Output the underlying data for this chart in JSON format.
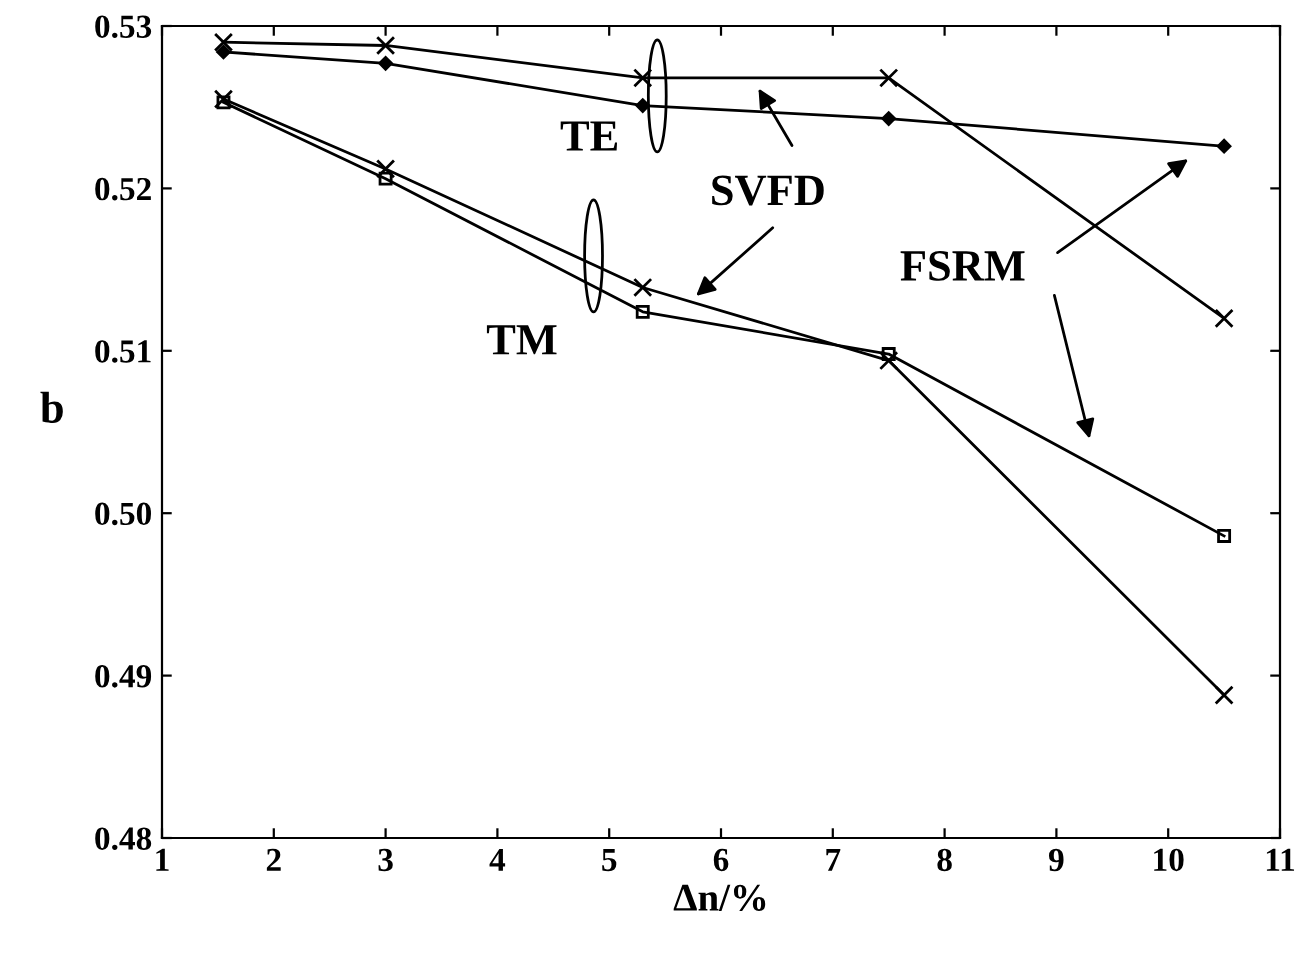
{
  "chart_data": {
    "type": "line",
    "xlabel": "Δn/%",
    "ylabel": "b",
    "xlim": [
      1,
      11
    ],
    "xticks": [
      1,
      2,
      3,
      4,
      5,
      6,
      7,
      8,
      9,
      10,
      11
    ],
    "ylim": [
      0.48,
      0.53
    ],
    "yticks": [
      0.48,
      0.49,
      {
        "value": 0.5,
        "label": "0.50"
      },
      0.51,
      0.52,
      0.53
    ],
    "grid": false,
    "legend": false,
    "line_style": "solid",
    "x": [
      1.55,
      3.0,
      5.3,
      7.5,
      10.5
    ],
    "series": [
      {
        "color": "#000000",
        "marker": "cross",
        "values": [
          0.529,
          0.5288,
          0.5268,
          0.5268,
          0.512
        ]
      },
      {
        "color": "#000000",
        "marker": "diamond",
        "values": [
          0.5284,
          0.5277,
          0.5251,
          0.5243,
          0.5226
        ]
      },
      {
        "color": "#000000",
        "marker": "cross",
        "values": [
          0.5255,
          0.5212,
          0.5139,
          0.5094,
          0.4888
        ]
      },
      {
        "color": "#000000",
        "marker": "square",
        "values": [
          0.5253,
          0.5206,
          0.5124,
          0.5098,
          0.4986
        ]
      }
    ],
    "annotations": [
      "TE",
      "TM",
      "SVFD",
      "FSRM"
    ]
  }
}
